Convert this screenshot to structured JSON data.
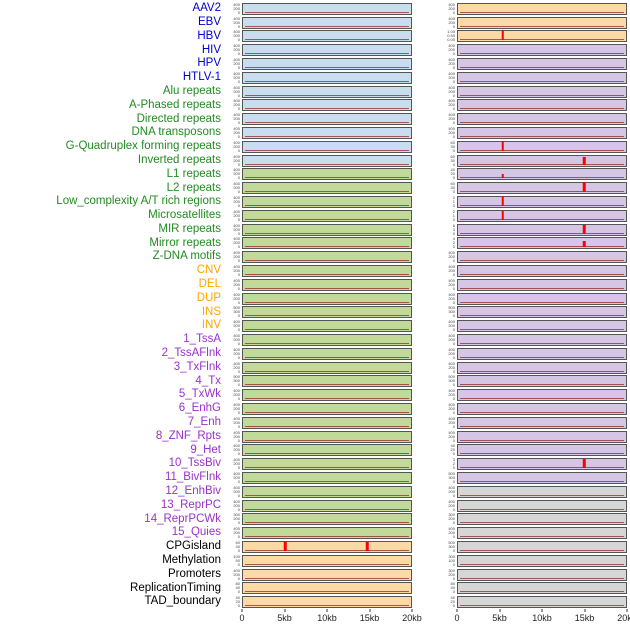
{
  "figure": {
    "x_axis_ticks": [
      "0",
      "5kb",
      "10kb",
      "15kb",
      "20kb"
    ],
    "label_colors": {
      "virus": "#0000cd",
      "repeat": "#228b22",
      "sv": "#ffa500",
      "chromatin": "#9932cc",
      "other": "#000000"
    },
    "panel_colors": {
      "blue": "#c8ddef",
      "green": "#c1da9a",
      "orange": "#fdd9a6",
      "purple": "#d4c6e4",
      "gray": "#d6d6d6"
    },
    "spike_color": "#ff0000",
    "baseline_color": "#8b1e1e"
  },
  "chart_data": {
    "type": "line",
    "title": "",
    "xlabel": "",
    "x_range_kb": [
      0,
      20
    ],
    "x_ticks": [
      "0",
      "5kb",
      "10kb",
      "15kb",
      "20kb"
    ],
    "columns": 2,
    "rows": [
      {
        "label": "AAV2",
        "group": "virus",
        "left": {
          "bg": "blue",
          "yticks": [
            "400",
            "200",
            "0"
          ],
          "spikes": []
        },
        "right": {
          "bg": "orange",
          "yticks": [
            "400",
            "200",
            "0"
          ],
          "spikes": []
        }
      },
      {
        "label": "EBV",
        "group": "virus",
        "left": {
          "bg": "blue",
          "yticks": [
            "400",
            "200",
            "0"
          ],
          "spikes": []
        },
        "right": {
          "bg": "orange",
          "yticks": [
            "400",
            "200",
            "0"
          ],
          "spikes": []
        }
      },
      {
        "label": "HBV",
        "group": "virus",
        "left": {
          "bg": "blue",
          "yticks": [
            "400",
            "200",
            "0"
          ],
          "spikes": []
        },
        "right": {
          "bg": "orange",
          "yticks": [
            "1.00",
            "0.50",
            "0.00"
          ],
          "spikes": [
            {
              "x_kb": 5.3,
              "h": 1
            }
          ]
        }
      },
      {
        "label": "HIV",
        "group": "virus",
        "left": {
          "bg": "blue",
          "yticks": [
            "400",
            "200",
            "0"
          ],
          "spikes": []
        },
        "right": {
          "bg": "purple",
          "yticks": [
            "400",
            "200",
            "0"
          ],
          "spikes": []
        }
      },
      {
        "label": "HPV",
        "group": "virus",
        "left": {
          "bg": "blue",
          "yticks": [
            "400",
            "200",
            "0"
          ],
          "spikes": []
        },
        "right": {
          "bg": "purple",
          "yticks": [
            "400",
            "200",
            "0"
          ],
          "spikes": []
        }
      },
      {
        "label": "HTLV-1",
        "group": "virus",
        "left": {
          "bg": "blue",
          "yticks": [
            "400",
            "200",
            "0"
          ],
          "spikes": []
        },
        "right": {
          "bg": "purple",
          "yticks": [
            "400",
            "200",
            "0"
          ],
          "spikes": []
        }
      },
      {
        "label": "Alu repeats",
        "group": "repeat",
        "left": {
          "bg": "blue",
          "yticks": [
            "400",
            "200",
            "0"
          ],
          "spikes": []
        },
        "right": {
          "bg": "purple",
          "yticks": [
            "400",
            "200",
            "0"
          ],
          "spikes": []
        }
      },
      {
        "label": "A-Phased repeats",
        "group": "repeat",
        "left": {
          "bg": "blue",
          "yticks": [
            "400",
            "200",
            "0"
          ],
          "spikes": []
        },
        "right": {
          "bg": "purple",
          "yticks": [
            "400",
            "200",
            "0"
          ],
          "spikes": []
        }
      },
      {
        "label": "Directed repeats",
        "group": "repeat",
        "left": {
          "bg": "blue",
          "yticks": [
            "400",
            "200",
            "0"
          ],
          "spikes": []
        },
        "right": {
          "bg": "purple",
          "yticks": [
            "400",
            "200",
            "0"
          ],
          "spikes": []
        }
      },
      {
        "label": "DNA transposons",
        "group": "repeat",
        "left": {
          "bg": "blue",
          "yticks": [
            "400",
            "200",
            "0"
          ],
          "spikes": []
        },
        "right": {
          "bg": "purple",
          "yticks": [
            "400",
            "200",
            "0"
          ],
          "spikes": []
        }
      },
      {
        "label": "G-Quadruplex forming repeats",
        "group": "repeat",
        "left": {
          "bg": "blue",
          "yticks": [
            "400",
            "200",
            "0"
          ],
          "spikes": []
        },
        "right": {
          "bg": "purple",
          "yticks": [
            "60",
            "30",
            "0"
          ],
          "spikes": [
            {
              "x_kb": 5.3,
              "h": 1
            }
          ]
        }
      },
      {
        "label": "Inverted repeats",
        "group": "repeat",
        "left": {
          "bg": "blue",
          "yticks": [
            "400",
            "200",
            "0"
          ],
          "spikes": []
        },
        "right": {
          "bg": "purple",
          "yticks": [
            "60",
            "30",
            "0"
          ],
          "spikes": [
            {
              "x_kb": 15,
              "h": 0.75
            }
          ]
        }
      },
      {
        "label": "L1 repeats",
        "group": "repeat",
        "left": {
          "bg": "green",
          "yticks": [
            "400",
            "200",
            "0"
          ],
          "spikes": []
        },
        "right": {
          "bg": "purple",
          "yticks": [
            "40",
            "20",
            "0"
          ],
          "spikes": [
            {
              "x_kb": 5.3,
              "h": 0.45
            }
          ]
        }
      },
      {
        "label": "L2 repeats",
        "group": "repeat",
        "left": {
          "bg": "green",
          "yticks": [
            "400",
            "200",
            "0"
          ],
          "spikes": []
        },
        "right": {
          "bg": "purple",
          "yticks": [
            "60",
            "30",
            "0"
          ],
          "spikes": [
            {
              "x_kb": 15,
              "h": 1
            }
          ]
        }
      },
      {
        "label": "Low_complexity A/T rich regions",
        "group": "repeat",
        "left": {
          "bg": "green",
          "yticks": [
            "400",
            "200",
            "0"
          ],
          "spikes": []
        },
        "right": {
          "bg": "purple",
          "yticks": [
            "2",
            "1",
            "0"
          ],
          "spikes": [
            {
              "x_kb": 5.3,
              "h": 1
            }
          ]
        }
      },
      {
        "label": "Microsatellites",
        "group": "repeat",
        "left": {
          "bg": "green",
          "yticks": [
            "400",
            "200",
            "0"
          ],
          "spikes": []
        },
        "right": {
          "bg": "purple",
          "yticks": [
            "2",
            "1",
            "0"
          ],
          "spikes": [
            {
              "x_kb": 5.3,
              "h": 0.9
            }
          ]
        }
      },
      {
        "label": "MIR repeats",
        "group": "repeat",
        "left": {
          "bg": "green",
          "yticks": [
            "400",
            "200",
            "0"
          ],
          "spikes": []
        },
        "right": {
          "bg": "purple",
          "yticks": [
            "6",
            "3",
            "0"
          ],
          "spikes": [
            {
              "x_kb": 15,
              "h": 0.9
            }
          ]
        }
      },
      {
        "label": "Mirror repeats",
        "group": "repeat",
        "left": {
          "bg": "green",
          "yticks": [
            "400",
            "200",
            "0"
          ],
          "spikes": []
        },
        "right": {
          "bg": "purple",
          "yticks": [
            "4",
            "2",
            "0"
          ],
          "spikes": [
            {
              "x_kb": 15,
              "h": 0.6
            }
          ]
        }
      },
      {
        "label": "Z-DNA motifs",
        "group": "repeat",
        "left": {
          "bg": "green",
          "yticks": [
            "400",
            "200",
            "0"
          ],
          "spikes": []
        },
        "right": {
          "bg": "purple",
          "yticks": [
            "400",
            "200",
            "0"
          ],
          "spikes": []
        }
      },
      {
        "label": "CNV",
        "group": "sv",
        "left": {
          "bg": "green",
          "yticks": [
            "400",
            "200",
            "0"
          ],
          "spikes": []
        },
        "right": {
          "bg": "purple",
          "yticks": [
            "400",
            "200",
            "0"
          ],
          "spikes": []
        }
      },
      {
        "label": "DEL",
        "group": "sv",
        "left": {
          "bg": "green",
          "yticks": [
            "400",
            "200",
            "0"
          ],
          "spikes": []
        },
        "right": {
          "bg": "purple",
          "yticks": [
            "400",
            "200",
            "0"
          ],
          "spikes": []
        }
      },
      {
        "label": "DUP",
        "group": "sv",
        "left": {
          "bg": "green",
          "yticks": [
            "400",
            "200",
            "0"
          ],
          "spikes": []
        },
        "right": {
          "bg": "purple",
          "yticks": [
            "400",
            "200",
            "0"
          ],
          "spikes": []
        }
      },
      {
        "label": "INS",
        "group": "sv",
        "left": {
          "bg": "green",
          "yticks": [
            "500",
            "300",
            "0"
          ],
          "spikes": []
        },
        "right": {
          "bg": "purple",
          "yticks": [
            "500",
            "300",
            "0"
          ],
          "spikes": []
        }
      },
      {
        "label": "INV",
        "group": "sv",
        "left": {
          "bg": "green",
          "yticks": [
            "400",
            "200",
            "0"
          ],
          "spikes": []
        },
        "right": {
          "bg": "purple",
          "yticks": [
            "400",
            "200",
            "0"
          ],
          "spikes": []
        }
      },
      {
        "label": "1_TssA",
        "group": "chromatin",
        "left": {
          "bg": "green",
          "yticks": [
            "400",
            "200",
            "0"
          ],
          "spikes": []
        },
        "right": {
          "bg": "purple",
          "yticks": [
            "400",
            "200",
            "0"
          ],
          "spikes": []
        }
      },
      {
        "label": "2_TssAFlnk",
        "group": "chromatin",
        "left": {
          "bg": "green",
          "yticks": [
            "400",
            "200",
            "0"
          ],
          "spikes": []
        },
        "right": {
          "bg": "purple",
          "yticks": [
            "400",
            "200",
            "0"
          ],
          "spikes": []
        }
      },
      {
        "label": "3_TxFlnk",
        "group": "chromatin",
        "left": {
          "bg": "green",
          "yticks": [
            "400",
            "200",
            "0"
          ],
          "spikes": []
        },
        "right": {
          "bg": "purple",
          "yticks": [
            "400",
            "200",
            "0"
          ],
          "spikes": []
        }
      },
      {
        "label": "4_Tx",
        "group": "chromatin",
        "left": {
          "bg": "green",
          "yticks": [
            "500",
            "300",
            "0"
          ],
          "spikes": []
        },
        "right": {
          "bg": "purple",
          "yticks": [
            "500",
            "300",
            "0"
          ],
          "spikes": []
        }
      },
      {
        "label": "5_TxWk",
        "group": "chromatin",
        "left": {
          "bg": "green",
          "yticks": [
            "400",
            "200",
            "0"
          ],
          "spikes": []
        },
        "right": {
          "bg": "purple",
          "yticks": [
            "400",
            "200",
            "0"
          ],
          "spikes": []
        }
      },
      {
        "label": "6_EnhG",
        "group": "chromatin",
        "left": {
          "bg": "green",
          "yticks": [
            "400",
            "200",
            "0"
          ],
          "spikes": []
        },
        "right": {
          "bg": "purple",
          "yticks": [
            "400",
            "200",
            "0"
          ],
          "spikes": []
        }
      },
      {
        "label": "7_Enh",
        "group": "chromatin",
        "left": {
          "bg": "green",
          "yticks": [
            "400",
            "200",
            "0"
          ],
          "spikes": []
        },
        "right": {
          "bg": "purple",
          "yticks": [
            "400",
            "200",
            "0"
          ],
          "spikes": []
        }
      },
      {
        "label": "8_ZNF_Rpts",
        "group": "chromatin",
        "left": {
          "bg": "green",
          "yticks": [
            "400",
            "200",
            "0"
          ],
          "spikes": []
        },
        "right": {
          "bg": "purple",
          "yticks": [
            "400",
            "200",
            "0"
          ],
          "spikes": []
        }
      },
      {
        "label": "9_Het",
        "group": "chromatin",
        "left": {
          "bg": "green",
          "yticks": [
            "400",
            "200",
            "0"
          ],
          "spikes": []
        },
        "right": {
          "bg": "purple",
          "yticks": [
            "40",
            "20",
            "0"
          ],
          "spikes": []
        }
      },
      {
        "label": "10_TssBiv",
        "group": "chromatin",
        "left": {
          "bg": "green",
          "yticks": [
            "400",
            "200",
            "0"
          ],
          "spikes": []
        },
        "right": {
          "bg": "purple",
          "yticks": [
            "3",
            "2",
            "0"
          ],
          "spikes": [
            {
              "x_kb": 15,
              "h": 0.95
            }
          ]
        }
      },
      {
        "label": "11_BivFlnk",
        "group": "chromatin",
        "left": {
          "bg": "green",
          "yticks": [
            "400",
            "200",
            "0"
          ],
          "spikes": []
        },
        "right": {
          "bg": "purple",
          "yticks": [
            "500",
            "300",
            "0"
          ],
          "spikes": []
        }
      },
      {
        "label": "12_EnhBiv",
        "group": "chromatin",
        "left": {
          "bg": "green",
          "yticks": [
            "400",
            "200",
            "0"
          ],
          "spikes": []
        },
        "right": {
          "bg": "gray",
          "yticks": [
            "400",
            "200",
            "0"
          ],
          "spikes": []
        }
      },
      {
        "label": "13_ReprPC",
        "group": "chromatin",
        "left": {
          "bg": "green",
          "yticks": [
            "400",
            "200",
            "0"
          ],
          "spikes": []
        },
        "right": {
          "bg": "gray",
          "yticks": [
            "400",
            "200",
            "0"
          ],
          "spikes": []
        }
      },
      {
        "label": "14_ReprPCWk",
        "group": "chromatin",
        "left": {
          "bg": "green",
          "yticks": [
            "300",
            "200",
            "0"
          ],
          "spikes": []
        },
        "right": {
          "bg": "gray",
          "yticks": [
            "300",
            "200",
            "0"
          ],
          "spikes": []
        }
      },
      {
        "label": "15_Quies",
        "group": "chromatin",
        "left": {
          "bg": "green",
          "yticks": [
            "400",
            "200",
            "0"
          ],
          "spikes": []
        },
        "right": {
          "bg": "gray",
          "yticks": [
            "400",
            "200",
            "0"
          ],
          "spikes": []
        }
      },
      {
        "label": "CPGisland",
        "group": "other",
        "left": {
          "bg": "orange",
          "yticks": [
            "60",
            "40",
            "0"
          ],
          "spikes": [
            {
              "x_kb": 5,
              "h": 0.95
            },
            {
              "x_kb": 14.8,
              "h": 0.9
            }
          ]
        },
        "right": {
          "bg": "gray",
          "yticks": [
            "500",
            "300",
            "0"
          ],
          "spikes": []
        }
      },
      {
        "label": "Methylation",
        "group": "other",
        "left": {
          "bg": "orange",
          "yticks": [
            "100",
            "50",
            "0"
          ],
          "spikes": []
        },
        "right": {
          "bg": "gray",
          "yticks": [
            "300",
            "100",
            "0"
          ],
          "spikes": []
        }
      },
      {
        "label": "Promoters",
        "group": "other",
        "left": {
          "bg": "orange",
          "yticks": [
            "400",
            "200",
            "0"
          ],
          "spikes": []
        },
        "right": {
          "bg": "gray",
          "yticks": [
            "300",
            "200",
            "0"
          ],
          "spikes": []
        }
      },
      {
        "label": "ReplicationTiming",
        "group": "other",
        "left": {
          "bg": "orange",
          "yticks": [
            "80",
            "40",
            "0"
          ],
          "spikes": []
        },
        "right": {
          "bg": "gray",
          "yticks": [
            "80",
            "40",
            "0"
          ],
          "spikes": []
        }
      },
      {
        "label": "TAD_boundary",
        "group": "other",
        "left": {
          "bg": "orange",
          "yticks": [
            "40",
            "20",
            "0"
          ],
          "spikes": []
        },
        "right": {
          "bg": "gray",
          "yticks": [
            "40",
            "20",
            "0"
          ],
          "spikes": []
        }
      }
    ]
  }
}
